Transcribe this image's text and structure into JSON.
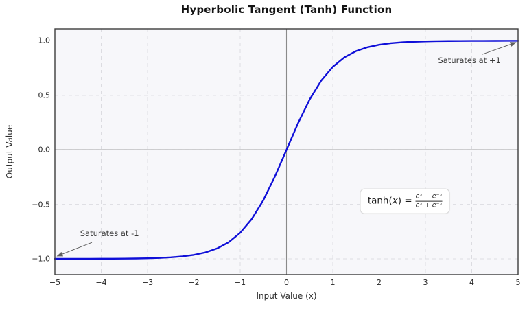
{
  "chart_data": {
    "type": "line",
    "title": "Hyperbolic Tangent (Tanh) Function",
    "xlabel": "Input Value (x)",
    "ylabel": "Output Value",
    "xlim": [
      -5,
      5
    ],
    "ylim": [
      -1.145,
      1.11
    ],
    "grid": true,
    "grid_style": "dashed",
    "x_ticks": [
      -5,
      -4,
      -3,
      -2,
      -1,
      0,
      1,
      2,
      3,
      4,
      5
    ],
    "x_tick_labels": [
      "−5",
      "−4",
      "−3",
      "−2",
      "−1",
      "0",
      "1",
      "2",
      "3",
      "4",
      "5"
    ],
    "y_ticks": [
      -1.0,
      -0.5,
      0.0,
      0.5,
      1.0
    ],
    "y_tick_labels": [
      "−1.0",
      "−0.5",
      "0.0",
      "0.5",
      "1.0"
    ],
    "zero_lines": true,
    "series": [
      {
        "name": "tanh(x)",
        "color": "#0f0fd8",
        "x": [
          -5,
          -4.75,
          -4.5,
          -4.25,
          -4,
          -3.75,
          -3.5,
          -3.25,
          -3,
          -2.75,
          -2.5,
          -2.25,
          -2,
          -1.75,
          -1.5,
          -1.25,
          -1,
          -0.75,
          -0.5,
          -0.25,
          0,
          0.25,
          0.5,
          0.75,
          1,
          1.25,
          1.5,
          1.75,
          2,
          2.25,
          2.5,
          2.75,
          3,
          3.25,
          3.5,
          3.75,
          4,
          4.25,
          4.5,
          4.75,
          5
        ],
        "y": [
          -0.9999,
          -0.9999,
          -0.9998,
          -0.9996,
          -0.9993,
          -0.9989,
          -0.9982,
          -0.997,
          -0.9951,
          -0.9919,
          -0.9866,
          -0.978,
          -0.964,
          -0.9414,
          -0.9051,
          -0.8483,
          -0.7616,
          -0.6351,
          -0.4621,
          -0.2449,
          0,
          0.2449,
          0.4621,
          0.6351,
          0.7616,
          0.8483,
          0.9051,
          0.9414,
          0.964,
          0.978,
          0.9866,
          0.9919,
          0.9951,
          0.997,
          0.9982,
          0.9989,
          0.9993,
          0.9996,
          0.9998,
          0.9999,
          0.9999
        ]
      }
    ],
    "annotations": [
      {
        "text": "Saturates at +1",
        "text_x": 3.95,
        "text_y": 0.82,
        "arrow_from_x": 4.22,
        "arrow_from_y": 0.875,
        "arrow_to_x": 4.95,
        "arrow_to_y": 0.985
      },
      {
        "text": "Saturates at -1",
        "text_x": -3.82,
        "text_y": -0.77,
        "arrow_from_x": -4.2,
        "arrow_from_y": -0.85,
        "arrow_to_x": -4.95,
        "arrow_to_y": -0.975
      }
    ],
    "formula": {
      "fn": "tanh(",
      "variable": "x",
      "close": ") =",
      "numerator": "eˣ − e⁻ˣ",
      "denominator": "eˣ + e⁻ˣ",
      "x": 2.56,
      "y": -0.47
    },
    "colors": {
      "plot_bg": "#f7f7fa",
      "grid": "#dcdce1",
      "zero_line": "#8a8a8a",
      "spine": "#3c3c3c",
      "arrow": "#5f5f5f",
      "curve": "#0f0fd8"
    }
  }
}
